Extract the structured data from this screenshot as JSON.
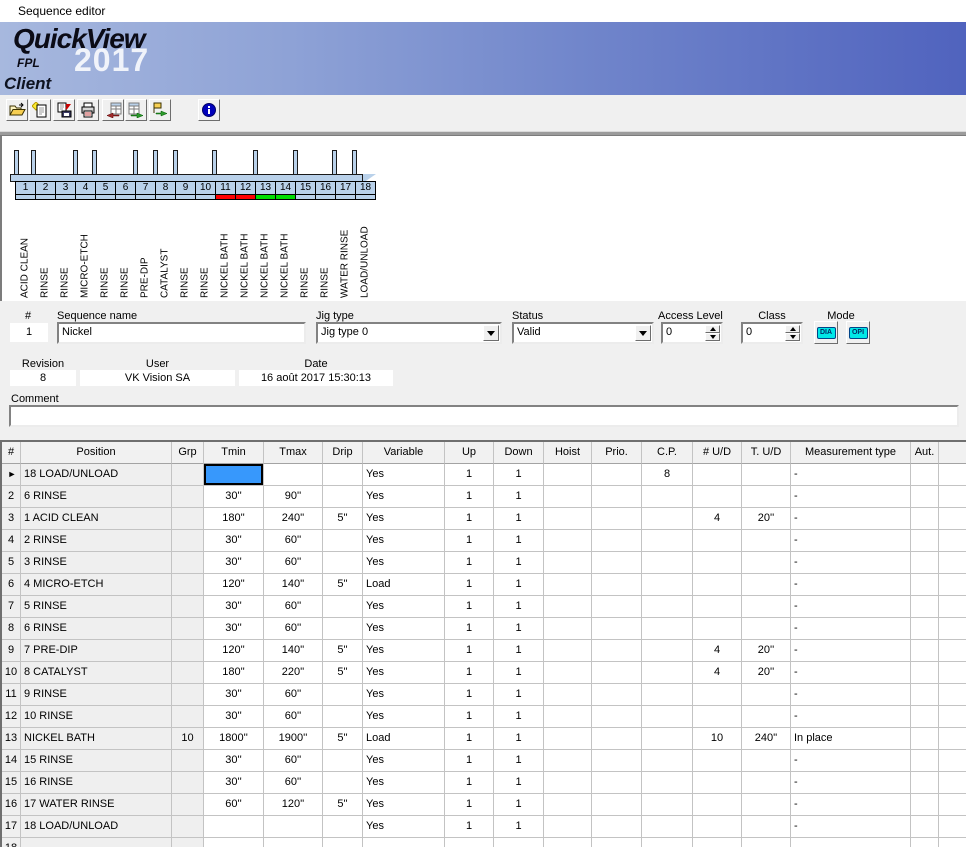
{
  "window": {
    "title": "Sequence editor"
  },
  "banner": {
    "product": "QuickView",
    "year": "2017",
    "company": "FPL",
    "edition": "Client"
  },
  "toolbar": {
    "icons": [
      "open-file",
      "new-document",
      "save-file",
      "print",
      "import-table",
      "export-table",
      "send-sequence",
      "info"
    ]
  },
  "diagram": {
    "tanks": [
      {
        "num": "1",
        "label": "ACID CLEAN",
        "marker": "none"
      },
      {
        "num": "2",
        "label": "RINSE",
        "marker": "none"
      },
      {
        "num": "3",
        "label": "RINSE",
        "marker": "none"
      },
      {
        "num": "4",
        "label": "MICRO-ETCH",
        "marker": "none"
      },
      {
        "num": "5",
        "label": "RINSE",
        "marker": "none"
      },
      {
        "num": "6",
        "label": "RINSE",
        "marker": "none"
      },
      {
        "num": "7",
        "label": "PRE-DIP",
        "marker": "none"
      },
      {
        "num": "8",
        "label": "CATALYST",
        "marker": "none"
      },
      {
        "num": "9",
        "label": "RINSE",
        "marker": "none"
      },
      {
        "num": "10",
        "label": "RINSE",
        "marker": "none"
      },
      {
        "num": "11",
        "label": "NICKEL BATH",
        "marker": "red"
      },
      {
        "num": "12",
        "label": "NICKEL BATH",
        "marker": "red"
      },
      {
        "num": "13",
        "label": "NICKEL BATH",
        "marker": "green"
      },
      {
        "num": "14",
        "label": "NICKEL BATH",
        "marker": "green"
      },
      {
        "num": "15",
        "label": "RINSE",
        "marker": "none"
      },
      {
        "num": "16",
        "label": "RINSE",
        "marker": "none"
      },
      {
        "num": "17",
        "label": "WATER RINSE",
        "marker": "none"
      },
      {
        "num": "18",
        "label": "LOAD/UNLOAD",
        "marker": "none"
      }
    ],
    "colors": {
      "tank_fill": "#b9d1ea",
      "marker_red": "#ff0000",
      "marker_green": "#00dd00"
    }
  },
  "form": {
    "number_label": "#",
    "number_value": "1",
    "sequence_name_label": "Sequence name",
    "sequence_name_value": "Nickel",
    "jig_type_label": "Jig type",
    "jig_type_value": "Jig type 0",
    "status_label": "Status",
    "status_value": "Valid",
    "access_level_label": "Access Level",
    "access_level_value": "0",
    "class_label": "Class",
    "class_value": "0",
    "mode_label": "Mode",
    "mode_buttons": [
      "DIA",
      "OPI"
    ],
    "revision_label": "Revision",
    "revision_value": "8",
    "user_label": "User",
    "user_value": "VK Vision SA",
    "date_label": "Date",
    "date_value": "16 août 2017 15:30:13",
    "comment_label": "Comment",
    "comment_value": ""
  },
  "table": {
    "columns": [
      "#",
      "Position",
      "Grp",
      "Tmin",
      "Tmax",
      "Drip",
      "Variable",
      "Up",
      "Down",
      "Hoist",
      "Prio.",
      "C.P.",
      "# U/D",
      "T. U/D",
      "Measurement type",
      "Aut."
    ],
    "selected_cell": {
      "row": 0,
      "column": "Tmin"
    },
    "selection_color": "#3399ff",
    "rows": [
      [
        "►",
        "18 LOAD/UNLOAD",
        "",
        "",
        "",
        "",
        "Yes",
        "1",
        "1",
        "",
        "",
        "8",
        "",
        "",
        "-",
        ""
      ],
      [
        "2",
        "6 RINSE",
        "",
        "30''",
        "90''",
        "",
        "Yes",
        "1",
        "1",
        "",
        "",
        "",
        "",
        "",
        "-",
        ""
      ],
      [
        "3",
        "1 ACID CLEAN",
        "",
        "180''",
        "240''",
        "5''",
        "Yes",
        "1",
        "1",
        "",
        "",
        "",
        "4",
        "20''",
        "-",
        ""
      ],
      [
        "4",
        "2 RINSE",
        "",
        "30''",
        "60''",
        "",
        "Yes",
        "1",
        "1",
        "",
        "",
        "",
        "",
        "",
        "-",
        ""
      ],
      [
        "5",
        "3 RINSE",
        "",
        "30''",
        "60''",
        "",
        "Yes",
        "1",
        "1",
        "",
        "",
        "",
        "",
        "",
        "-",
        ""
      ],
      [
        "6",
        "4 MICRO-ETCH",
        "",
        "120''",
        "140''",
        "5''",
        "Load",
        "1",
        "1",
        "",
        "",
        "",
        "",
        "",
        "-",
        ""
      ],
      [
        "7",
        "5 RINSE",
        "",
        "30''",
        "60''",
        "",
        "Yes",
        "1",
        "1",
        "",
        "",
        "",
        "",
        "",
        "-",
        ""
      ],
      [
        "8",
        "6 RINSE",
        "",
        "30''",
        "60''",
        "",
        "Yes",
        "1",
        "1",
        "",
        "",
        "",
        "",
        "",
        "-",
        ""
      ],
      [
        "9",
        "7 PRE-DIP",
        "",
        "120''",
        "140''",
        "5''",
        "Yes",
        "1",
        "1",
        "",
        "",
        "",
        "4",
        "20''",
        "-",
        ""
      ],
      [
        "10",
        "8 CATALYST",
        "",
        "180''",
        "220''",
        "5''",
        "Yes",
        "1",
        "1",
        "",
        "",
        "",
        "4",
        "20''",
        "-",
        ""
      ],
      [
        "11",
        "9 RINSE",
        "",
        "30''",
        "60''",
        "",
        "Yes",
        "1",
        "1",
        "",
        "",
        "",
        "",
        "",
        "-",
        ""
      ],
      [
        "12",
        "10 RINSE",
        "",
        "30''",
        "60''",
        "",
        "Yes",
        "1",
        "1",
        "",
        "",
        "",
        "",
        "",
        "-",
        ""
      ],
      [
        "13",
        "NICKEL BATH",
        "10",
        "1800''",
        "1900''",
        "5''",
        "Load",
        "1",
        "1",
        "",
        "",
        "",
        "10",
        "240''",
        "In place",
        ""
      ],
      [
        "14",
        "15 RINSE",
        "",
        "30''",
        "60''",
        "",
        "Yes",
        "1",
        "1",
        "",
        "",
        "",
        "",
        "",
        "-",
        ""
      ],
      [
        "15",
        "16 RINSE",
        "",
        "30''",
        "60''",
        "",
        "Yes",
        "1",
        "1",
        "",
        "",
        "",
        "",
        "",
        "-",
        ""
      ],
      [
        "16",
        "17 WATER RINSE",
        "",
        "60''",
        "120''",
        "5''",
        "Yes",
        "1",
        "1",
        "",
        "",
        "",
        "",
        "",
        "-",
        ""
      ],
      [
        "17",
        "18 LOAD/UNLOAD",
        "",
        "",
        "",
        "",
        "Yes",
        "1",
        "1",
        "",
        "",
        "",
        "",
        "",
        "-",
        ""
      ],
      [
        "18",
        "",
        "",
        "",
        "",
        "",
        "",
        "",
        "",
        "",
        "",
        "",
        "",
        "",
        "-",
        ""
      ]
    ]
  }
}
